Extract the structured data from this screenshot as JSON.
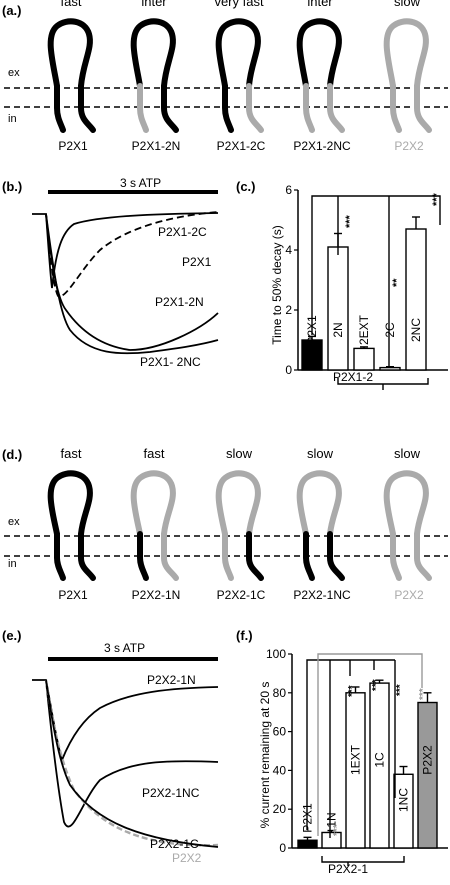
{
  "colors": {
    "black": "#000000",
    "gray": "#aaaaaa",
    "bar_gray": "#999999",
    "stars_gray": "#999999"
  },
  "panel_a": {
    "label": "(a.)",
    "ex": "ex",
    "in": "in",
    "speeds": [
      "fast",
      "inter",
      "very fast",
      "inter",
      "slow"
    ],
    "names": [
      "P2X1",
      "P2X1-2N",
      "P2X1-2C",
      "P2X1-2NC",
      "P2X2"
    ]
  },
  "panel_b": {
    "label": "(b.)",
    "atp": "3 s ATP",
    "traces": [
      "P2X1-2C",
      "P2X1",
      "P2X1-2N",
      "P2X1- 2NC"
    ]
  },
  "panel_c": {
    "label": "(c.)",
    "ylabel": "Time to 50% decay (s)",
    "group_label": "P2X1-2",
    "sig_a": "***",
    "sig_b": "**",
    "sig_c": "***",
    "chart_data": {
      "type": "bar",
      "categories": [
        "P2X1",
        "2N",
        "2EXT",
        "2C",
        "2NC"
      ],
      "values": [
        1.0,
        4.1,
        0.72,
        0.08,
        4.7
      ],
      "errors": [
        0.12,
        0.45,
        0.05,
        0.03,
        0.4
      ],
      "ylim": [
        0,
        6
      ],
      "yticks": [
        "0",
        "2",
        "4",
        "6"
      ]
    }
  },
  "panel_d": {
    "label": "(d.)",
    "ex": "ex",
    "in": "in",
    "speeds": [
      "fast",
      "fast",
      "slow",
      "slow",
      "slow"
    ],
    "names": [
      "P2X1",
      "P2X2-1N",
      "P2X2-1C",
      "P2X2-1NC",
      "P2X2"
    ]
  },
  "panel_e": {
    "label": "(e.)",
    "atp": "3 s ATP",
    "traces": [
      "P2X2-1N",
      "P2X2-1NC",
      "P2X2-1C",
      "P2X2"
    ]
  },
  "panel_f": {
    "label": "(f.)",
    "ylabel": "% current remaining at 20 s",
    "group_label": "P2X2-1",
    "sig_1n": "***",
    "sig_1ext": "***",
    "sig_1c": "***",
    "sig_1nc": "***",
    "sig_p2x2": "***",
    "chart_data": {
      "type": "bar",
      "categories": [
        "P2X1",
        "1N",
        "1EXT",
        "1C",
        "1NC",
        "P2X2"
      ],
      "values": [
        4,
        8,
        80,
        85,
        38,
        75
      ],
      "errors": [
        1.5,
        1,
        3,
        1.5,
        4,
        5
      ],
      "ylim": [
        0,
        100
      ],
      "yticks": [
        "0",
        "20",
        "40",
        "60",
        "80",
        "100"
      ]
    }
  }
}
